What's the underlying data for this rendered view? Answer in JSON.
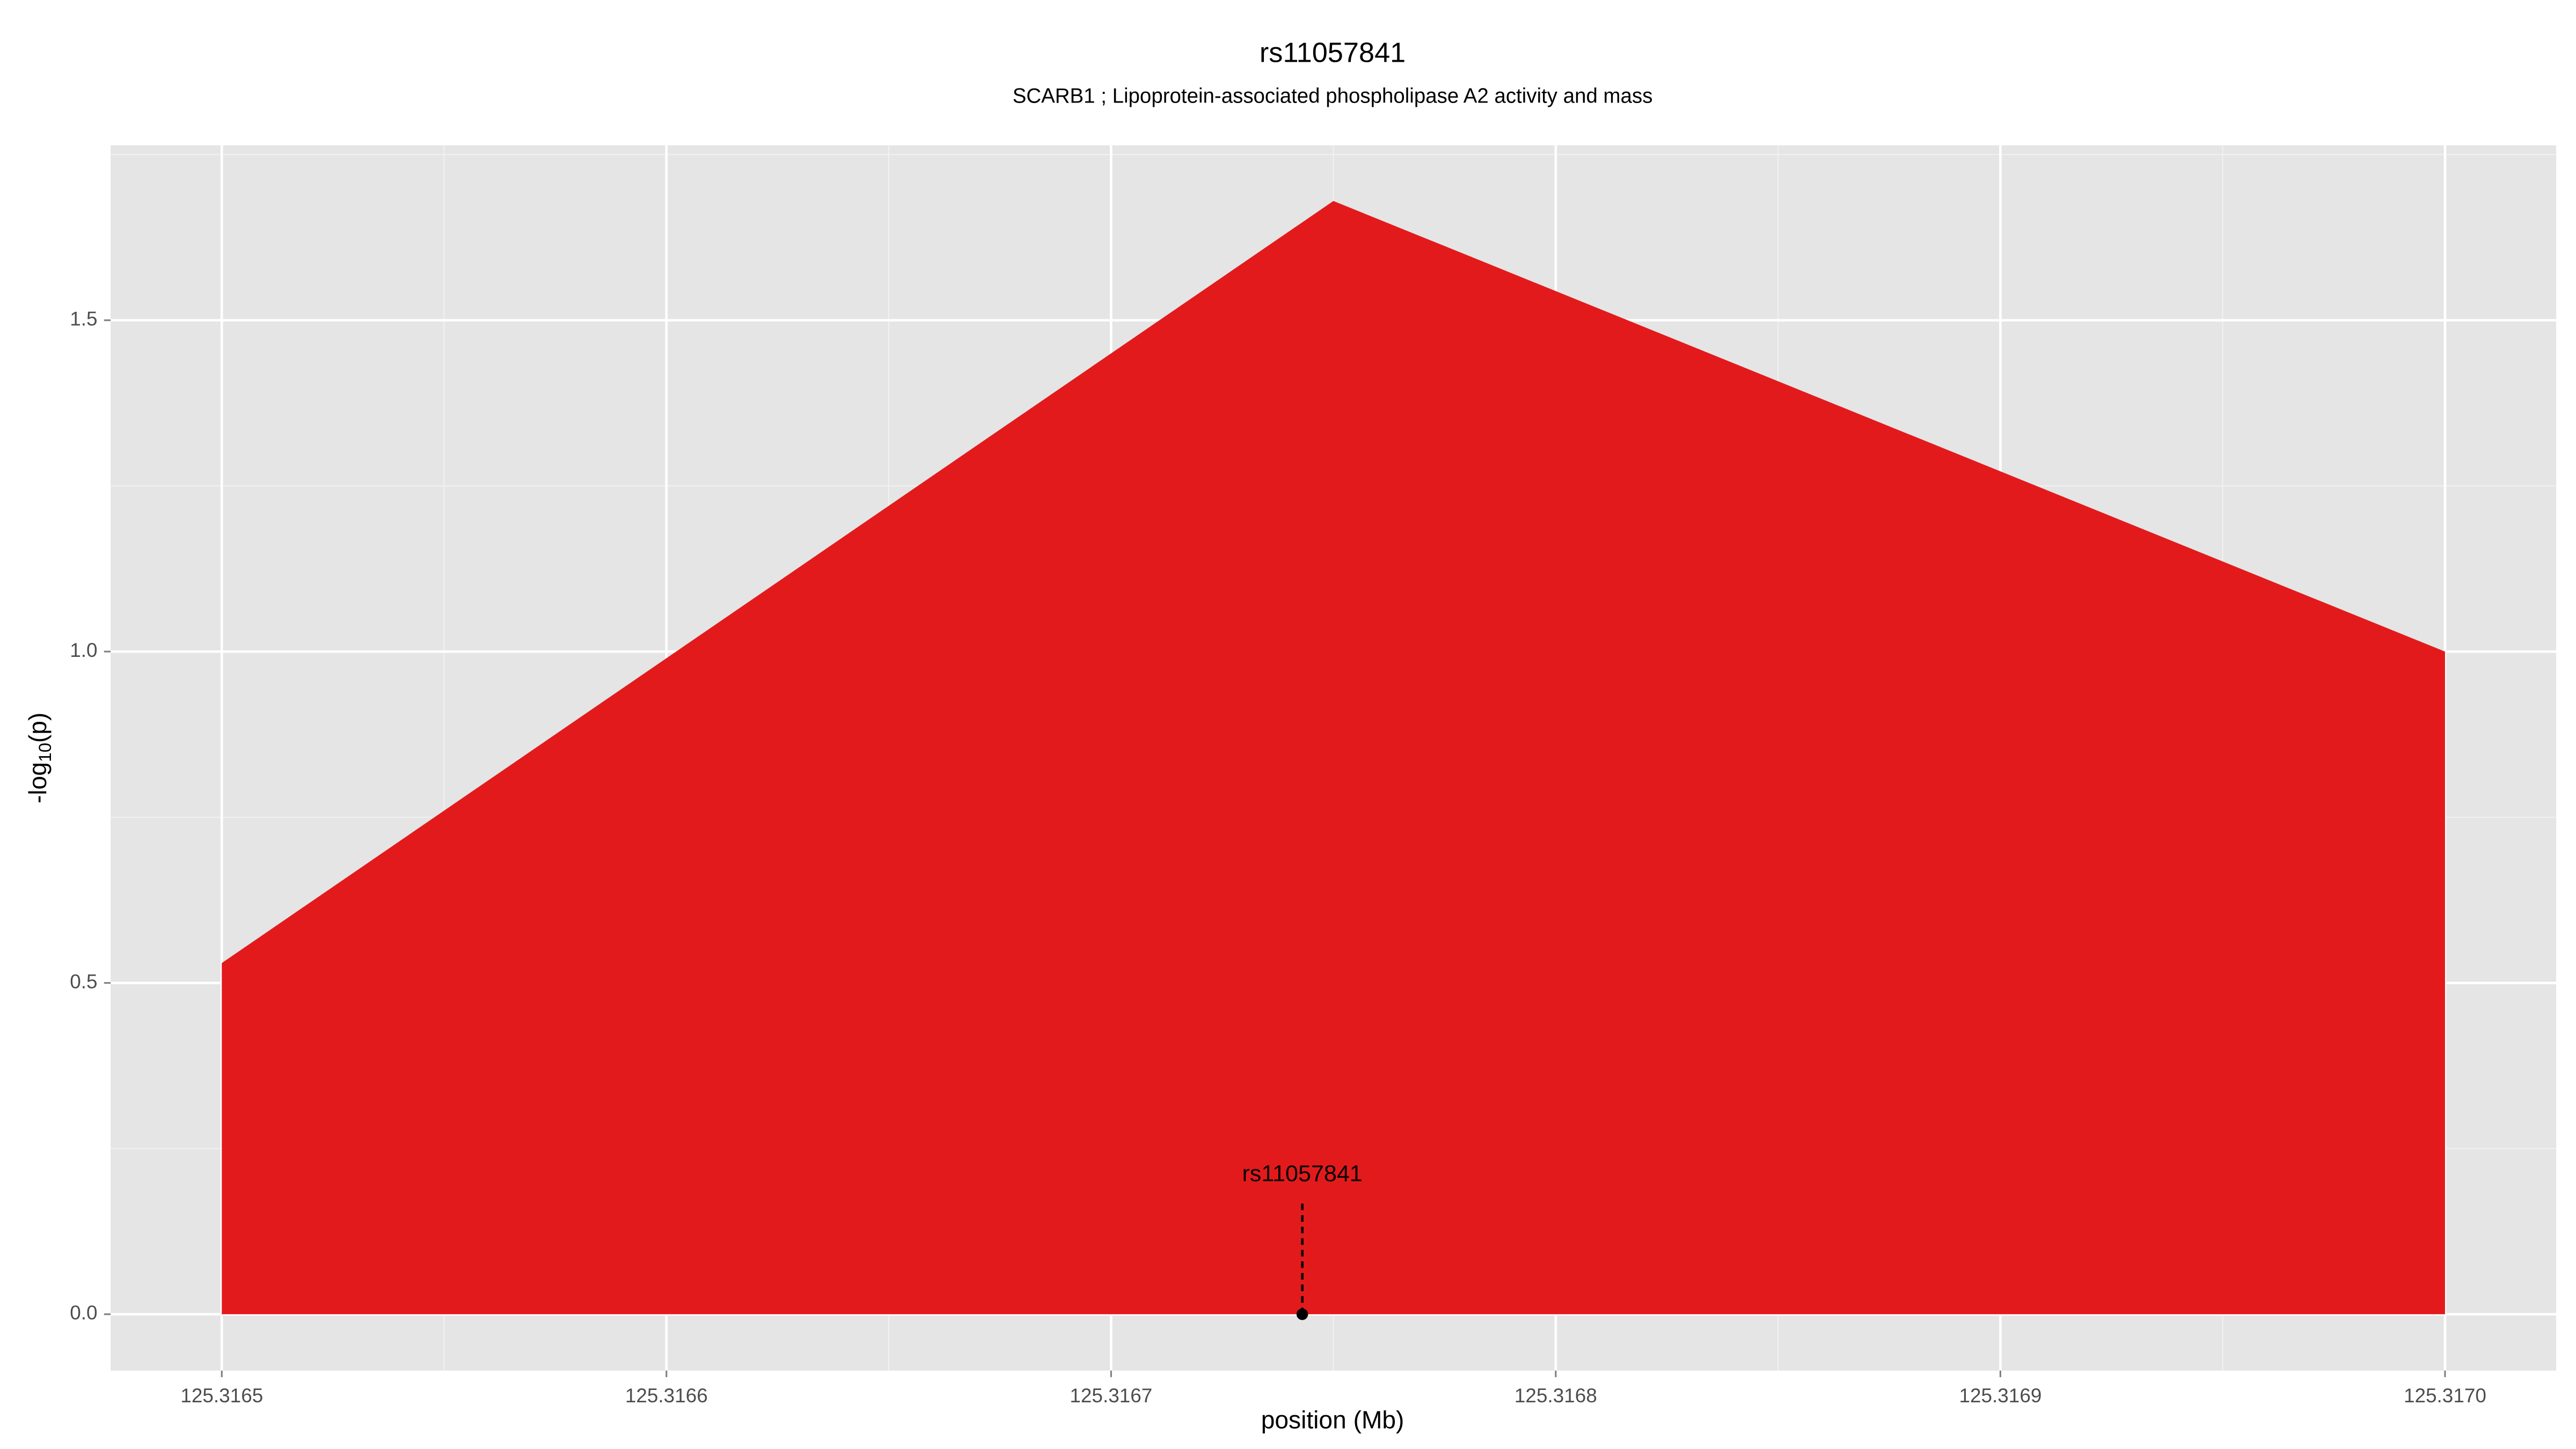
{
  "chart_data": {
    "type": "area",
    "title": "rs11057841",
    "subtitle": "SCARB1 ; Lipoprotein-associated phospholipase A2 activity and mass",
    "xlabel": "position (Mb)",
    "ylabel": [
      "-log",
      "10",
      "(p)"
    ],
    "x": [
      125.3165,
      125.31675,
      125.317
    ],
    "series": [
      {
        "name": "rs11057841",
        "color": "#e31a1c",
        "values": [
          0.53,
          1.68,
          1.0
        ]
      }
    ],
    "xlim": [
      125.316475,
      125.317025
    ],
    "ylim": [
      -0.085,
      1.764
    ],
    "xticks": [
      125.3165,
      125.3166,
      125.3167,
      125.3168,
      125.3169,
      {
        "value": 125.317,
        "label": "125.3170"
      }
    ],
    "yticks": [
      {
        "value": 0,
        "label": "0.0"
      },
      0.5,
      {
        "value": 1,
        "label": "1.0"
      },
      1.5
    ],
    "grid": true,
    "minor_grid": true,
    "panel_color": "#e5e5e5",
    "annotation": {
      "label": "rs11057841",
      "x": 125.316743,
      "y": 0,
      "y_end": 0.17
    }
  }
}
